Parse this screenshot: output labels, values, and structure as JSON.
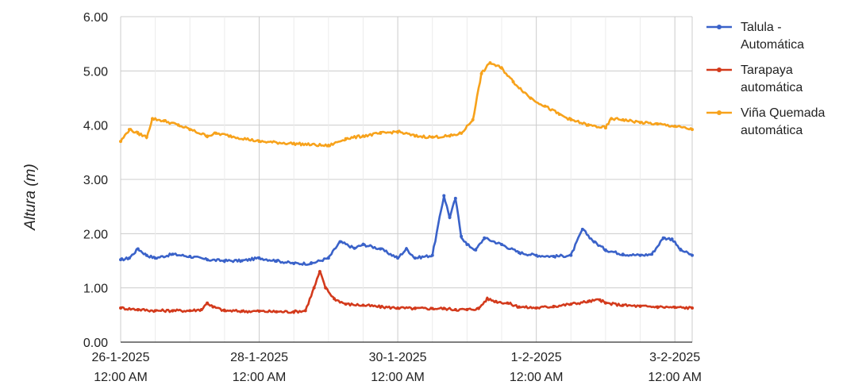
{
  "chart_data": {
    "type": "line",
    "title": "",
    "xlabel": "",
    "ylabel": "Altura (m)",
    "ylim": [
      0,
      6
    ],
    "yticks": [
      "0.00",
      "1.00",
      "2.00",
      "3.00",
      "4.00",
      "5.00",
      "6.00"
    ],
    "xlim": [
      "2025-01-26 00:00",
      "2025-02-03 06:00"
    ],
    "xticks": [
      {
        "x": "2025-01-26 00:00",
        "date": "26-1-2025",
        "time": "12:00 AM"
      },
      {
        "x": "2025-01-28 00:00",
        "date": "28-1-2025",
        "time": "12:00 AM"
      },
      {
        "x": "2025-01-30 00:00",
        "date": "30-1-2025",
        "time": "12:00 AM"
      },
      {
        "x": "2025-02-01 00:00",
        "date": "1-2-2025",
        "time": "12:00 AM"
      },
      {
        "x": "2025-02-03 00:00",
        "date": "3-2-2025",
        "time": "12:00 AM"
      }
    ],
    "grid": true,
    "legend_position": "right",
    "series": [
      {
        "name": "Talula - Automática",
        "legend_lines": [
          "Talula -",
          "Automática"
        ],
        "color": "#3a62c9",
        "points": [
          [
            "2025-01-26 00:00",
            1.52
          ],
          [
            "2025-01-26 03:00",
            1.55
          ],
          [
            "2025-01-26 06:00",
            1.72
          ],
          [
            "2025-01-26 09:00",
            1.6
          ],
          [
            "2025-01-26 12:00",
            1.55
          ],
          [
            "2025-01-26 18:00",
            1.62
          ],
          [
            "2025-01-27 00:00",
            1.58
          ],
          [
            "2025-01-27 06:00",
            1.52
          ],
          [
            "2025-01-27 12:00",
            1.5
          ],
          [
            "2025-01-27 18:00",
            1.5
          ],
          [
            "2025-01-28 00:00",
            1.55
          ],
          [
            "2025-01-28 06:00",
            1.5
          ],
          [
            "2025-01-28 12:00",
            1.45
          ],
          [
            "2025-01-28 18:00",
            1.45
          ],
          [
            "2025-01-29 00:00",
            1.55
          ],
          [
            "2025-01-29 04:00",
            1.85
          ],
          [
            "2025-01-29 09:00",
            1.73
          ],
          [
            "2025-01-29 12:00",
            1.8
          ],
          [
            "2025-01-29 18:00",
            1.72
          ],
          [
            "2025-01-30 00:00",
            1.55
          ],
          [
            "2025-01-30 03:00",
            1.72
          ],
          [
            "2025-01-30 06:00",
            1.55
          ],
          [
            "2025-01-30 12:00",
            1.6
          ],
          [
            "2025-01-30 16:00",
            2.7
          ],
          [
            "2025-01-30 18:00",
            2.3
          ],
          [
            "2025-01-30 20:00",
            2.65
          ],
          [
            "2025-01-30 22:00",
            1.95
          ],
          [
            "2025-01-31 00:00",
            1.8
          ],
          [
            "2025-01-31 03:00",
            1.7
          ],
          [
            "2025-01-31 06:00",
            1.92
          ],
          [
            "2025-01-31 12:00",
            1.8
          ],
          [
            "2025-01-31 18:00",
            1.65
          ],
          [
            "2025-02-01 00:00",
            1.6
          ],
          [
            "2025-02-01 06:00",
            1.58
          ],
          [
            "2025-02-01 12:00",
            1.6
          ],
          [
            "2025-02-01 16:00",
            2.08
          ],
          [
            "2025-02-01 20:00",
            1.85
          ],
          [
            "2025-02-02 00:00",
            1.7
          ],
          [
            "2025-02-02 06:00",
            1.62
          ],
          [
            "2025-02-02 12:00",
            1.6
          ],
          [
            "2025-02-02 16:00",
            1.62
          ],
          [
            "2025-02-02 20:00",
            1.92
          ],
          [
            "2025-02-02 23:00",
            1.9
          ],
          [
            "2025-02-03 02:00",
            1.7
          ],
          [
            "2025-02-03 06:00",
            1.6
          ]
        ]
      },
      {
        "name": "Tarapaya automática",
        "legend_lines": [
          "Tarapaya",
          "automática"
        ],
        "color": "#d33a1c",
        "points": [
          [
            "2025-01-26 00:00",
            0.63
          ],
          [
            "2025-01-26 06:00",
            0.6
          ],
          [
            "2025-01-26 12:00",
            0.58
          ],
          [
            "2025-01-26 18:00",
            0.58
          ],
          [
            "2025-01-27 00:00",
            0.58
          ],
          [
            "2025-01-27 04:00",
            0.6
          ],
          [
            "2025-01-27 06:00",
            0.72
          ],
          [
            "2025-01-27 08:00",
            0.65
          ],
          [
            "2025-01-27 12:00",
            0.58
          ],
          [
            "2025-01-27 18:00",
            0.57
          ],
          [
            "2025-01-28 00:00",
            0.57
          ],
          [
            "2025-01-28 06:00",
            0.56
          ],
          [
            "2025-01-28 12:00",
            0.56
          ],
          [
            "2025-01-28 16:00",
            0.58
          ],
          [
            "2025-01-28 19:00",
            1.0
          ],
          [
            "2025-01-28 21:00",
            1.3
          ],
          [
            "2025-01-28 23:00",
            1.0
          ],
          [
            "2025-01-29 02:00",
            0.8
          ],
          [
            "2025-01-29 06:00",
            0.7
          ],
          [
            "2025-01-29 12:00",
            0.68
          ],
          [
            "2025-01-29 18:00",
            0.65
          ],
          [
            "2025-01-30 00:00",
            0.63
          ],
          [
            "2025-01-30 06:00",
            0.62
          ],
          [
            "2025-01-30 12:00",
            0.62
          ],
          [
            "2025-01-30 16:00",
            0.62
          ],
          [
            "2025-01-30 20:00",
            0.6
          ],
          [
            "2025-01-31 00:00",
            0.6
          ],
          [
            "2025-01-31 04:00",
            0.62
          ],
          [
            "2025-01-31 07:00",
            0.8
          ],
          [
            "2025-01-31 10:00",
            0.75
          ],
          [
            "2025-01-31 14:00",
            0.72
          ],
          [
            "2025-01-31 18:00",
            0.65
          ],
          [
            "2025-02-01 00:00",
            0.63
          ],
          [
            "2025-02-01 06:00",
            0.66
          ],
          [
            "2025-02-01 12:00",
            0.7
          ],
          [
            "2025-02-01 18:00",
            0.75
          ],
          [
            "2025-02-01 22:00",
            0.78
          ],
          [
            "2025-02-02 00:00",
            0.72
          ],
          [
            "2025-02-02 06:00",
            0.68
          ],
          [
            "2025-02-02 12:00",
            0.66
          ],
          [
            "2025-02-02 18:00",
            0.65
          ],
          [
            "2025-02-03 00:00",
            0.64
          ],
          [
            "2025-02-03 06:00",
            0.63
          ]
        ]
      },
      {
        "name": "Viña Quemada automática",
        "legend_lines": [
          "Viña Quemada",
          "automática"
        ],
        "color": "#f7a21b",
        "points": [
          [
            "2025-01-26 00:00",
            3.7
          ],
          [
            "2025-01-26 03:00",
            3.92
          ],
          [
            "2025-01-26 06:00",
            3.85
          ],
          [
            "2025-01-26 09:00",
            3.78
          ],
          [
            "2025-01-26 11:00",
            4.12
          ],
          [
            "2025-01-26 15:00",
            4.08
          ],
          [
            "2025-01-26 20:00",
            4.0
          ],
          [
            "2025-01-27 00:00",
            3.92
          ],
          [
            "2025-01-27 06:00",
            3.8
          ],
          [
            "2025-01-27 09:00",
            3.85
          ],
          [
            "2025-01-27 14:00",
            3.8
          ],
          [
            "2025-01-28 00:00",
            3.7
          ],
          [
            "2025-01-28 12:00",
            3.66
          ],
          [
            "2025-01-29 00:00",
            3.62
          ],
          [
            "2025-01-29 06:00",
            3.75
          ],
          [
            "2025-01-29 12:00",
            3.8
          ],
          [
            "2025-01-29 18:00",
            3.85
          ],
          [
            "2025-01-30 00:00",
            3.88
          ],
          [
            "2025-01-30 06:00",
            3.8
          ],
          [
            "2025-01-30 12:00",
            3.78
          ],
          [
            "2025-01-30 18:00",
            3.8
          ],
          [
            "2025-01-30 22:00",
            3.85
          ],
          [
            "2025-01-31 02:00",
            4.1
          ],
          [
            "2025-01-31 05:00",
            4.95
          ],
          [
            "2025-01-31 08:00",
            5.15
          ],
          [
            "2025-01-31 12:00",
            5.05
          ],
          [
            "2025-01-31 16:00",
            4.8
          ],
          [
            "2025-01-31 22:00",
            4.5
          ],
          [
            "2025-02-01 03:00",
            4.35
          ],
          [
            "2025-02-01 08:00",
            4.2
          ],
          [
            "2025-02-01 12:00",
            4.1
          ],
          [
            "2025-02-01 18:00",
            4.0
          ],
          [
            "2025-02-02 00:00",
            3.95
          ],
          [
            "2025-02-02 02:00",
            4.12
          ],
          [
            "2025-02-02 06:00",
            4.1
          ],
          [
            "2025-02-02 12:00",
            4.05
          ],
          [
            "2025-02-02 18:00",
            4.02
          ],
          [
            "2025-02-03 00:00",
            3.98
          ],
          [
            "2025-02-03 06:00",
            3.92
          ]
        ]
      }
    ]
  }
}
